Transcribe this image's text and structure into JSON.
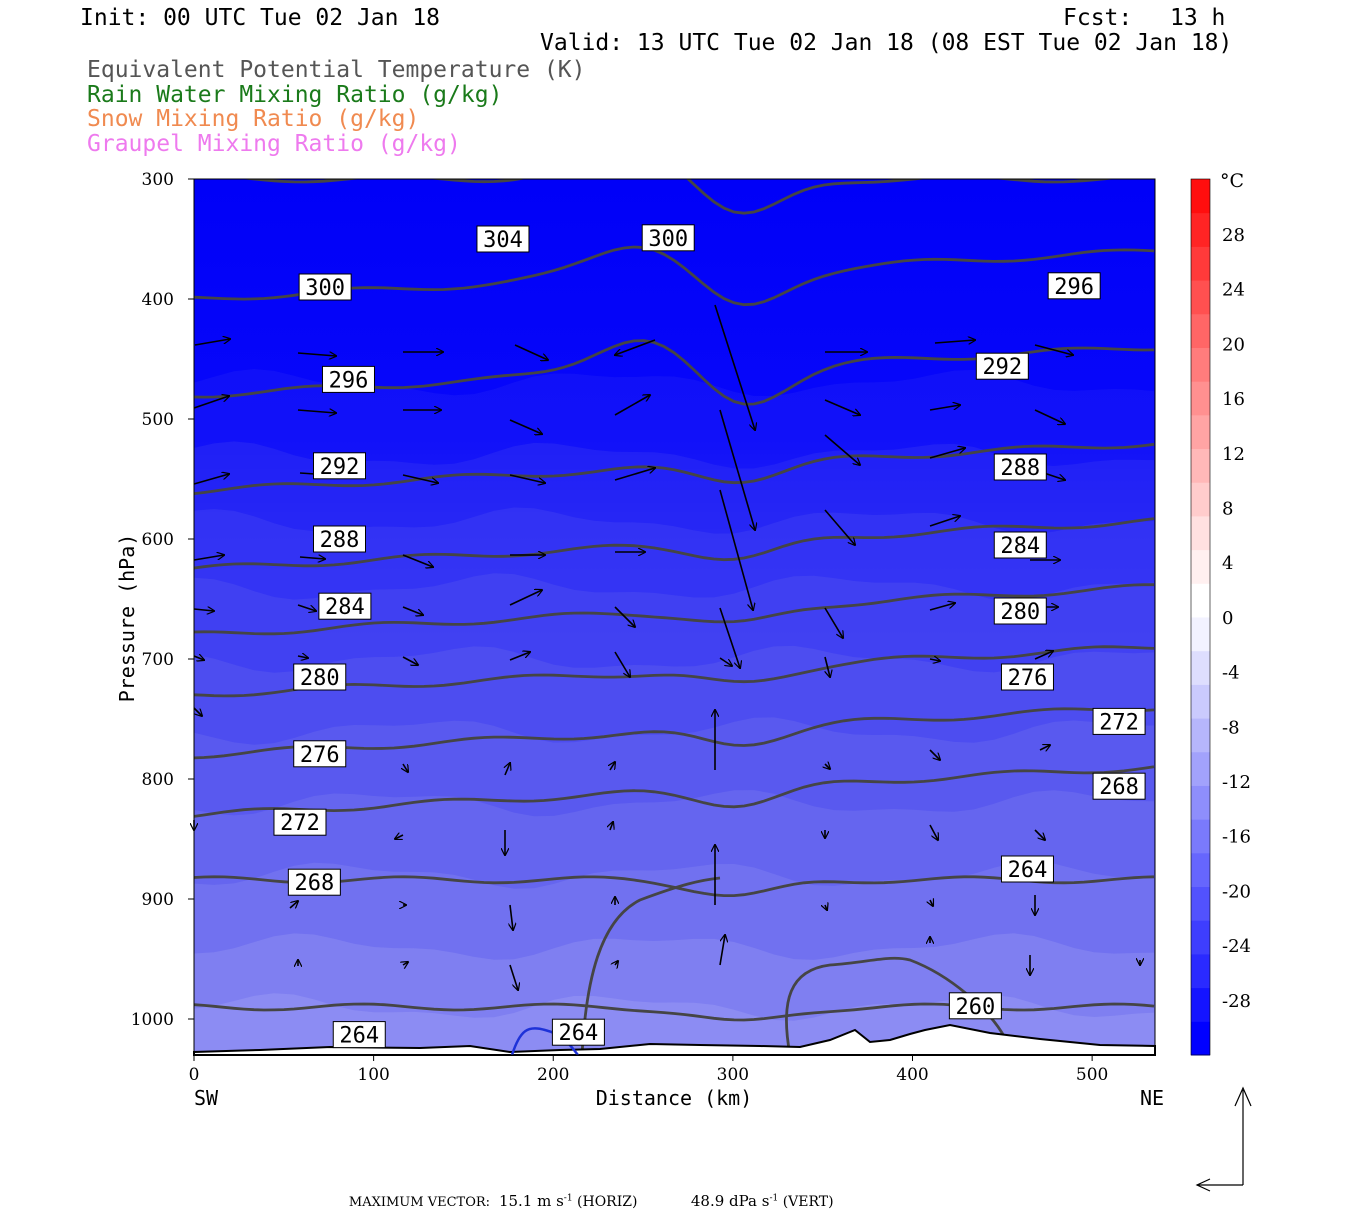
{
  "header": {
    "init": "Init: 00 UTC Tue 02 Jan 18",
    "fcst_label": "Fcst:",
    "fcst_value": "13 h",
    "valid": "Valid: 13 UTC Tue 02 Jan 18 (08 EST Tue 02 Jan 18)"
  },
  "legend": [
    {
      "text": "Equivalent Potential Temperature (K)",
      "color": "#555555"
    },
    {
      "text": "Rain Water Mixing Ratio (g/kg)",
      "color": "#1a7a1a"
    },
    {
      "text": "Snow Mixing Ratio (g/kg)",
      "color": "#f08a50"
    },
    {
      "text": "Graupel Mixing Ratio (g/kg)",
      "color": "#ee7aee"
    }
  ],
  "footer": {
    "max_vector_label": "MAXIMUM VECTOR:",
    "horiz": "15.1 m s",
    "horiz_unit": "(HORIZ)",
    "vert": "48.9 dPa s",
    "vert_unit": "(VERT)",
    "exp": "-1"
  },
  "colorbar": {
    "unit": "°C",
    "labels": [
      "28",
      "24",
      "20",
      "16",
      "12",
      "8",
      "4",
      "0",
      "-4",
      "-8",
      "-12",
      "-16",
      "-20",
      "-24",
      "-28"
    ],
    "colors": [
      "#0000ff",
      "#1414ff",
      "#2a2aff",
      "#3e3efe",
      "#5252fd",
      "#6666fd",
      "#7a7afc",
      "#8e8efc",
      "#a2a2fc",
      "#b6b6fc",
      "#cacafd",
      "#dedefe",
      "#f2f2ff",
      "#ffffff",
      "#fff0f0",
      "#ffe0e0",
      "#ffcccc",
      "#ffb8b8",
      "#ffa4a4",
      "#ff9090",
      "#ff7c7c",
      "#ff6666",
      "#ff5050",
      "#ff3a3a",
      "#ff2424",
      "#ff0e0e"
    ]
  },
  "chart_data": {
    "type": "cross-section",
    "xlabel": "Distance (km)",
    "ylabel": "Pressure (hPa)",
    "xlim": [
      0,
      535
    ],
    "ylim": [
      300,
      1030
    ],
    "x_ticks": [
      0,
      100,
      200,
      300,
      400,
      500
    ],
    "y_ticks": [
      300,
      400,
      500,
      600,
      700,
      800,
      900,
      1000
    ],
    "left_end_label": "SW",
    "right_end_label": "NE",
    "theta_e_contours": [
      {
        "value": 304,
        "label_x": 172,
        "label_p": 350
      },
      {
        "value": 300,
        "label_x": 73,
        "label_p": 390
      },
      {
        "value": 300,
        "label_x": 264,
        "label_p": 349
      },
      {
        "value": 296,
        "label_x": 490,
        "label_p": 389
      },
      {
        "value": 296,
        "label_x": 86,
        "label_p": 467
      },
      {
        "value": 292,
        "label_x": 450,
        "label_p": 456
      },
      {
        "value": 292,
        "label_x": 81,
        "label_p": 539
      },
      {
        "value": 288,
        "label_x": 460,
        "label_p": 540
      },
      {
        "value": 288,
        "label_x": 81,
        "label_p": 600
      },
      {
        "value": 284,
        "label_x": 460,
        "label_p": 605
      },
      {
        "value": 284,
        "label_x": 84,
        "label_p": 656
      },
      {
        "value": 280,
        "label_x": 460,
        "label_p": 660
      },
      {
        "value": 280,
        "label_x": 70,
        "label_p": 715
      },
      {
        "value": 276,
        "label_x": 464,
        "label_p": 715
      },
      {
        "value": 276,
        "label_x": 70,
        "label_p": 779
      },
      {
        "value": 272,
        "label_x": 515,
        "label_p": 752
      },
      {
        "value": 272,
        "label_x": 59,
        "label_p": 836
      },
      {
        "value": 268,
        "label_x": 515,
        "label_p": 806
      },
      {
        "value": 268,
        "label_x": 67,
        "label_p": 886
      },
      {
        "value": 264,
        "label_x": 464,
        "label_p": 875
      },
      {
        "value": 264,
        "label_x": 92,
        "label_p": 1013
      },
      {
        "value": 264,
        "label_x": 214,
        "label_p": 1011
      },
      {
        "value": 260,
        "label_x": 435,
        "label_p": 989
      }
    ]
  }
}
